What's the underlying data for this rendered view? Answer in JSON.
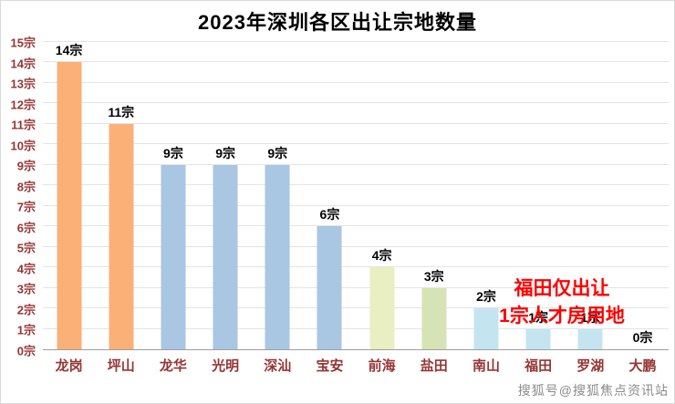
{
  "title": "2023年深圳各区出让宗地数量",
  "watermark": "搜狐号@搜狐焦点资讯站",
  "annotation": {
    "line1": "福田仅出让",
    "line2": "1宗人才房用地",
    "color": "#ff0000"
  },
  "colors": {
    "axis_label": "#943634",
    "grid": "#e4e4e4",
    "orange": "#fbb077",
    "blue": "#a9c6e3",
    "pale_yellow_green": "#e9efc0",
    "pale_green": "#d6e4b5",
    "pale_cyan": "#c4e5f0"
  },
  "chart_data": {
    "type": "bar",
    "title": "2023年深圳各区出让宗地数量",
    "categories": [
      "龙岗",
      "坪山",
      "龙华",
      "光明",
      "深汕",
      "宝安",
      "前海",
      "盐田",
      "南山",
      "福田",
      "罗湖",
      "大鹏"
    ],
    "values": [
      14,
      11,
      9,
      9,
      9,
      6,
      4,
      3,
      2,
      1,
      1,
      0
    ],
    "data_labels": [
      "14宗",
      "11宗",
      "9宗",
      "9宗",
      "9宗",
      "6宗",
      "4宗",
      "3宗",
      "2宗",
      "1宗",
      "1宗",
      "0宗"
    ],
    "bar_colors": [
      "#fbb077",
      "#fbb077",
      "#a9c6e3",
      "#a9c6e3",
      "#a9c6e3",
      "#a9c6e3",
      "#e9efc0",
      "#d6e4b5",
      "#c4e5f0",
      "#c4e5f0",
      "#c4e5f0",
      "#c4e5f0"
    ],
    "ylim": [
      0,
      15
    ],
    "yticks": [
      "0宗",
      "1宗",
      "2宗",
      "3宗",
      "4宗",
      "5宗",
      "6宗",
      "7宗",
      "8宗",
      "9宗",
      "10宗",
      "11宗",
      "12宗",
      "13宗",
      "14宗",
      "15宗"
    ],
    "xlabel": "",
    "ylabel": "",
    "grid": true,
    "legend": false
  }
}
